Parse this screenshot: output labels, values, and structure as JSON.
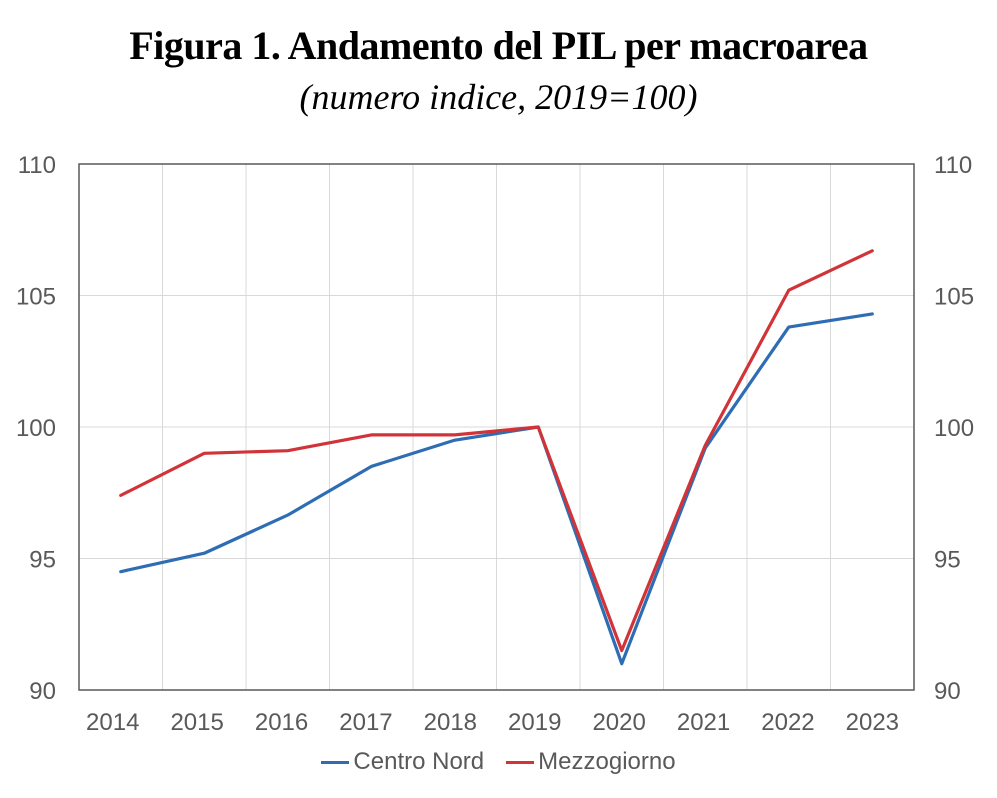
{
  "chart_data": {
    "type": "line",
    "title": "Figura 1. Andamento del PIL per macroarea",
    "subtitle": "(numero indice, 2019=100)",
    "xlabel": "",
    "ylabel": "",
    "categories": [
      "2014",
      "2015",
      "2016",
      "2017",
      "2018",
      "2019",
      "2020",
      "2021",
      "2022",
      "2023"
    ],
    "ylim": [
      90,
      110
    ],
    "yticks": [
      90,
      95,
      100,
      105,
      110
    ],
    "ytick_labels": [
      "90",
      "95",
      "100",
      "105",
      "110"
    ],
    "secondary_ytick_labels": [
      "90",
      "95",
      "100",
      "105",
      "110"
    ],
    "grid": true,
    "legend_position": "bottom",
    "series": [
      {
        "name": "Centro Nord",
        "color": "#2E6DB4",
        "values": [
          94.5,
          95.2,
          96.65,
          98.5,
          99.5,
          100.0,
          91.0,
          99.2,
          103.8,
          104.3
        ]
      },
      {
        "name": "Mezzogiorno",
        "color": "#D13438",
        "values": [
          97.4,
          99.0,
          99.1,
          99.7,
          99.7,
          100.0,
          91.5,
          99.3,
          105.2,
          106.7
        ]
      }
    ]
  }
}
